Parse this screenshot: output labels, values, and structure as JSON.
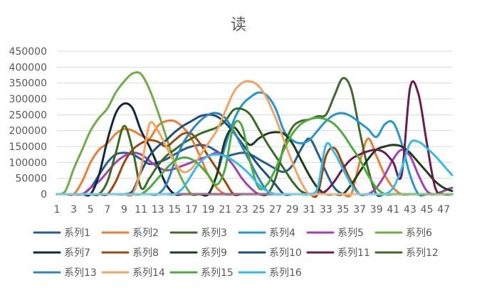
{
  "chart_data": {
    "type": "line",
    "title": "读",
    "xlabel": "",
    "ylabel": "",
    "x": [
      1,
      2,
      3,
      4,
      5,
      6,
      7,
      8,
      9,
      10,
      11,
      12,
      13,
      14,
      15,
      16,
      17,
      18,
      19,
      20,
      21,
      22,
      23,
      24,
      25,
      26,
      27,
      28,
      29,
      30,
      31,
      32,
      33,
      34,
      35,
      36,
      37,
      38,
      39,
      40,
      41,
      42,
      43,
      44,
      45,
      46,
      47,
      48
    ],
    "x_tick_labels": [
      "1",
      "3",
      "5",
      "7",
      "9",
      "11",
      "13",
      "15",
      "17",
      "19",
      "21",
      "23",
      "25",
      "27",
      "29",
      "31",
      "33",
      "35",
      "37",
      "39",
      "41",
      "43",
      "45",
      "47"
    ],
    "y_tick_labels": [
      "0",
      "50000",
      "100000",
      "150000",
      "200000",
      "250000",
      "300000",
      "350000",
      "400000",
      "450000"
    ],
    "ylim": [
      0,
      450000
    ],
    "grid": "horizontal",
    "legend_position": "bottom",
    "series": [
      {
        "name": "系列1",
        "color": "#255e91",
        "values": [
          0,
          0,
          0,
          0,
          20000,
          60000,
          100000,
          125000,
          130000,
          125000,
          110000,
          95000,
          100000,
          110000,
          125000,
          140000,
          150000,
          155000,
          150000,
          135000,
          120000,
          125000,
          130000,
          125000,
          110000,
          95000,
          80000,
          70000,
          90000,
          140000,
          175000,
          130000,
          70000,
          20000,
          0,
          0,
          0,
          0,
          0,
          0,
          0,
          0,
          0,
          0,
          0,
          0,
          0,
          0
        ]
      },
      {
        "name": "系列2",
        "color": "#ed7d31",
        "values": [
          0,
          0,
          0,
          40000,
          100000,
          140000,
          160000,
          190000,
          205000,
          200000,
          185000,
          175000,
          215000,
          230000,
          230000,
          210000,
          175000,
          120000,
          60000,
          20000,
          0,
          0,
          0,
          0,
          0,
          0,
          0,
          0,
          0,
          0,
          0,
          0,
          0,
          0,
          0,
          0,
          100000,
          175000,
          120000,
          60000,
          20000,
          0,
          0,
          0,
          0,
          0,
          0,
          0
        ]
      },
      {
        "name": "系列3",
        "color": "#43682b",
        "values": [
          0,
          0,
          0,
          0,
          0,
          0,
          0,
          0,
          0,
          0,
          0,
          0,
          0,
          0,
          0,
          0,
          0,
          0,
          0,
          0,
          0,
          0,
          0,
          0,
          0,
          0,
          50000,
          150000,
          210000,
          230000,
          235000,
          245000,
          250000,
          310000,
          365000,
          330000,
          200000,
          80000,
          0,
          0,
          0,
          0,
          0,
          0,
          0,
          0,
          10000,
          20000
        ]
      },
      {
        "name": "系列4",
        "color": "#2596d0",
        "values": [
          0,
          0,
          0,
          0,
          0,
          0,
          0,
          0,
          0,
          0,
          0,
          0,
          0,
          0,
          0,
          0,
          0,
          0,
          0,
          60000,
          150000,
          230000,
          280000,
          305000,
          320000,
          310000,
          270000,
          200000,
          170000,
          160000,
          170000,
          200000,
          230000,
          250000,
          255000,
          245000,
          225000,
          205000,
          180000,
          220000,
          225000,
          160000,
          60000,
          0,
          0,
          0,
          0,
          0
        ]
      },
      {
        "name": "系列5",
        "color": "#a63fb3",
        "values": [
          0,
          0,
          0,
          0,
          20000,
          40000,
          70000,
          100000,
          120000,
          130000,
          125000,
          105000,
          85000,
          75000,
          80000,
          90000,
          100000,
          110000,
          120000,
          130000,
          120000,
          90000,
          50000,
          20000,
          0,
          0,
          0,
          0,
          0,
          0,
          0,
          0,
          0,
          0,
          0,
          0,
          0,
          0,
          20000,
          60000,
          110000,
          140000,
          120000,
          60000,
          10000,
          0,
          10000,
          20000
        ]
      },
      {
        "name": "系列6",
        "color": "#70ad47",
        "values": [
          0,
          10000,
          80000,
          140000,
          200000,
          240000,
          270000,
          320000,
          355000,
          380000,
          378000,
          330000,
          260000,
          180000,
          100000,
          40000,
          0,
          0,
          0,
          0,
          0,
          0,
          0,
          0,
          0,
          0,
          0,
          0,
          0,
          0,
          0,
          0,
          0,
          0,
          0,
          0,
          0,
          0,
          0,
          0,
          0,
          0,
          0,
          0,
          0,
          0,
          0,
          0
        ]
      },
      {
        "name": "系列7",
        "color": "#0e2841",
        "values": [
          0,
          0,
          0,
          0,
          0,
          60000,
          170000,
          255000,
          285000,
          270000,
          200000,
          150000,
          90000,
          30000,
          0,
          0,
          0,
          0,
          0,
          0,
          0,
          0,
          0,
          0,
          0,
          0,
          0,
          0,
          0,
          0,
          0,
          0,
          0,
          0,
          0,
          0,
          0,
          0,
          0,
          0,
          0,
          0,
          0,
          0,
          0,
          0,
          0,
          0
        ]
      },
      {
        "name": "系列8",
        "color": "#9e480e",
        "values": [
          0,
          0,
          0,
          0,
          0,
          0,
          0,
          40000,
          100000,
          140000,
          160000,
          170000,
          165000,
          150000,
          170000,
          190000,
          190000,
          160000,
          120000,
          80000,
          40000,
          0,
          0,
          0,
          0,
          0,
          0,
          0,
          0,
          0,
          0,
          0,
          120000,
          145000,
          95000,
          40000,
          0,
          0,
          0,
          0,
          0,
          0,
          0,
          0,
          0,
          0,
          0,
          0
        ]
      },
      {
        "name": "系列9",
        "color": "#1e3d1a",
        "values": [
          0,
          0,
          0,
          0,
          0,
          0,
          0,
          0,
          0,
          0,
          0,
          0,
          0,
          0,
          0,
          0,
          0,
          0,
          0,
          60000,
          170000,
          210000,
          180000,
          155000,
          175000,
          190000,
          195000,
          190000,
          160000,
          110000,
          60000,
          20000,
          0,
          0,
          0,
          30000,
          70000,
          110000,
          140000,
          150000,
          155000,
          150000,
          130000,
          100000,
          70000,
          40000,
          20000,
          10000
        ]
      },
      {
        "name": "系列10",
        "color": "#1f4e79",
        "values": [
          0,
          0,
          0,
          0,
          0,
          0,
          0,
          0,
          0,
          10000,
          70000,
          120000,
          150000,
          170000,
          195000,
          215000,
          230000,
          245000,
          250000,
          245000,
          225000,
          195000,
          160000,
          125000,
          90000,
          60000,
          30000,
          0,
          0,
          0,
          0,
          0,
          0,
          0,
          0,
          0,
          0,
          0,
          0,
          0,
          0,
          0,
          0,
          0,
          0,
          0,
          0,
          0
        ]
      },
      {
        "name": "系列11",
        "color": "#6b1d52",
        "values": [
          0,
          0,
          0,
          0,
          0,
          0,
          0,
          0,
          0,
          0,
          0,
          0,
          0,
          0,
          0,
          0,
          0,
          0,
          0,
          0,
          0,
          0,
          0,
          0,
          0,
          0,
          0,
          0,
          0,
          0,
          0,
          0,
          10000,
          40000,
          80000,
          110000,
          125000,
          135000,
          140000,
          130000,
          100000,
          60000,
          335000,
          315000,
          160000,
          20000,
          0,
          0
        ]
      },
      {
        "name": "系列12",
        "color": "#3a6b22",
        "values": [
          0,
          0,
          0,
          0,
          0,
          0,
          40000,
          130000,
          215000,
          140000,
          20000,
          50000,
          90000,
          120000,
          140000,
          160000,
          175000,
          190000,
          200000,
          210000,
          230000,
          265000,
          268000,
          250000,
          205000,
          160000,
          120000,
          80000,
          40000,
          10000,
          0,
          0,
          0,
          0,
          0,
          0,
          0,
          0,
          0,
          0,
          0,
          0,
          0,
          0,
          0,
          0,
          0,
          0
        ]
      },
      {
        "name": "系列13",
        "color": "#2e86c1",
        "values": [
          0,
          0,
          0,
          0,
          0,
          0,
          0,
          0,
          0,
          0,
          0,
          0,
          0,
          30000,
          100000,
          160000,
          200000,
          230000,
          250000,
          255000,
          240000,
          200000,
          150000,
          100000,
          50000,
          10000,
          0,
          0,
          0,
          0,
          0,
          0,
          0,
          0,
          0,
          0,
          0,
          0,
          0,
          0,
          0,
          0,
          0,
          0,
          0,
          0,
          0,
          0
        ]
      },
      {
        "name": "系列14",
        "color": "#f4a460",
        "values": [
          0,
          0,
          0,
          0,
          0,
          0,
          0,
          0,
          0,
          0,
          80000,
          220000,
          200000,
          150000,
          100000,
          70000,
          80000,
          120000,
          160000,
          200000,
          260000,
          320000,
          350000,
          355000,
          340000,
          300000,
          240000,
          170000,
          100000,
          40000,
          0,
          0,
          0,
          0,
          0,
          0,
          0,
          0,
          0,
          0,
          0,
          0,
          0,
          0,
          0,
          0,
          0,
          0
        ]
      },
      {
        "name": "系列15",
        "color": "#4aad3c",
        "values": [
          0,
          0,
          0,
          0,
          0,
          0,
          0,
          0,
          0,
          0,
          0,
          20000,
          50000,
          80000,
          105000,
          115000,
          110000,
          90000,
          60000,
          30000,
          80000,
          215000,
          215000,
          100000,
          20000,
          30000,
          80000,
          140000,
          190000,
          220000,
          235000,
          240000,
          235000,
          220000,
          190000,
          150000,
          110000,
          60000,
          20000,
          0,
          0,
          0,
          0,
          0,
          0,
          0,
          0,
          0
        ]
      },
      {
        "name": "系列16",
        "color": "#33bbee",
        "values": [
          0,
          0,
          0,
          0,
          0,
          0,
          0,
          0,
          0,
          0,
          0,
          0,
          0,
          0,
          0,
          20000,
          60000,
          100000,
          120000,
          125000,
          120000,
          105000,
          85000,
          60000,
          30000,
          10000,
          0,
          0,
          0,
          0,
          0,
          20000,
          155000,
          130000,
          80000,
          30000,
          0,
          0,
          0,
          0,
          20000,
          80000,
          160000,
          165000,
          145000,
          120000,
          90000,
          60000
        ]
      }
    ]
  }
}
